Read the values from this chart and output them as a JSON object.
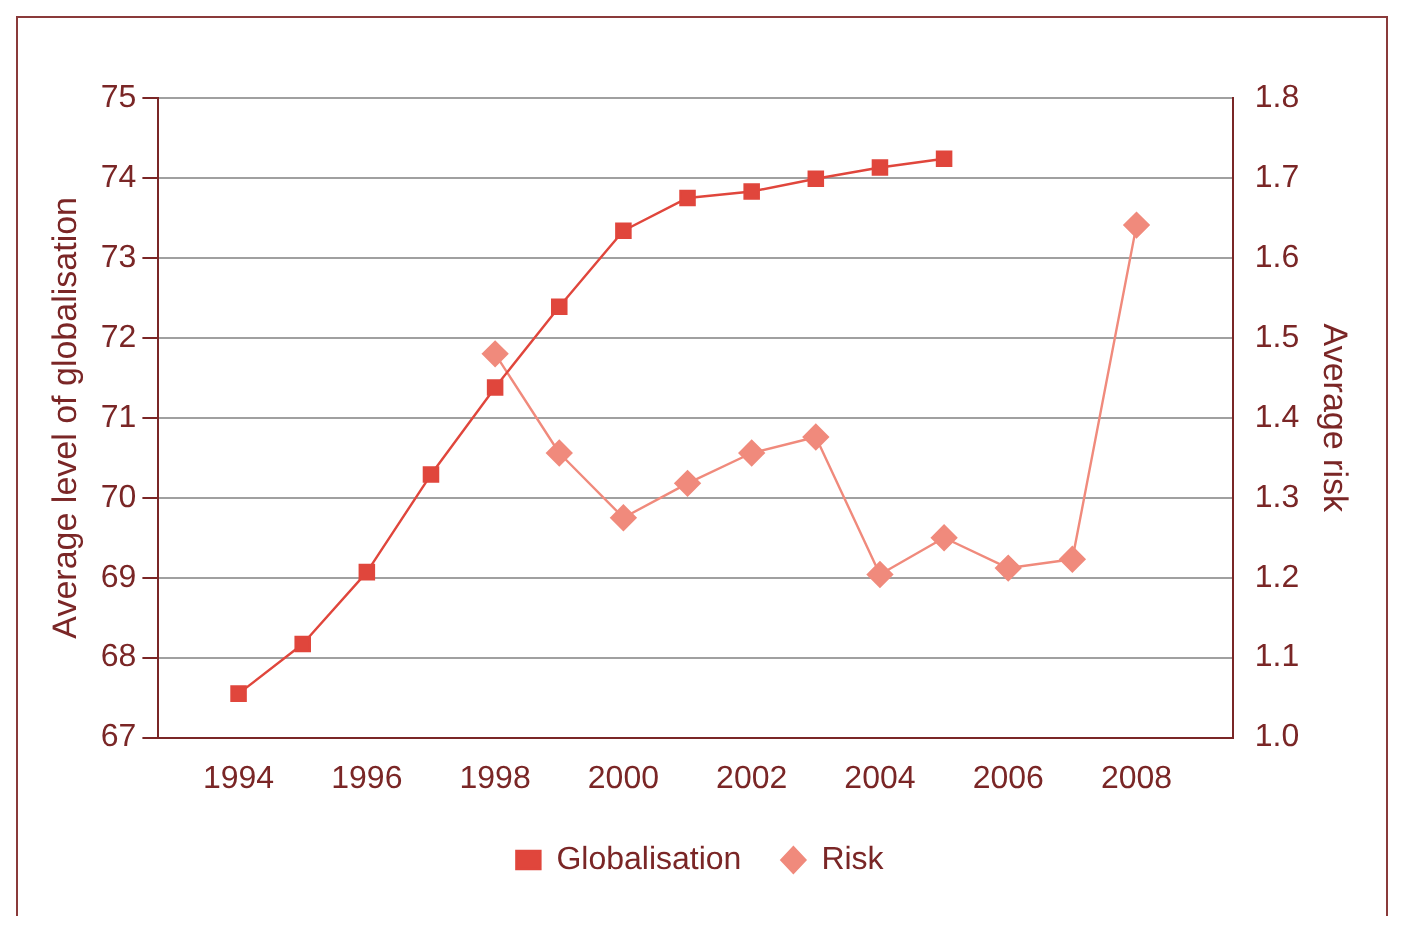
{
  "chart_data": {
    "type": "line",
    "xlabel": null,
    "ylabel": "Average level of globalisation",
    "y2label": "Average risk",
    "x": [
      1994,
      1995,
      1996,
      1997,
      1998,
      1999,
      2000,
      2001,
      2002,
      2003,
      2004,
      2005,
      2006,
      2007,
      2008
    ],
    "series": [
      {
        "name": "Globalisation",
        "color": "#e0463c",
        "marker": "square",
        "values": [
          67.55,
          68.17,
          69.07,
          70.29,
          71.38,
          72.39,
          73.34,
          73.75,
          73.83,
          73.99,
          74.13,
          74.24,
          null,
          null,
          null
        ]
      },
      {
        "name": "Risk",
        "color": "#f08a7c",
        "marker": "diamond",
        "axis": "y2",
        "values": [
          null,
          null,
          null,
          null,
          1.48,
          1.356,
          1.275,
          1.318,
          1.356,
          1.376,
          1.204,
          1.25,
          1.212,
          1.223,
          1.641
        ]
      }
    ],
    "xlim": [
      1992.75,
      2009.5
    ],
    "xticks": [
      1994,
      1996,
      1998,
      2000,
      2002,
      2004,
      2006,
      2008
    ],
    "ylim": [
      67,
      75
    ],
    "yticks": [
      67,
      68,
      69,
      70,
      71,
      72,
      73,
      74,
      75
    ],
    "y2lim": [
      1.0,
      1.8
    ],
    "y2ticks": [
      {
        "value": 1.0,
        "label": "1.0"
      },
      {
        "value": 1.1,
        "label": "1.1"
      },
      {
        "value": 1.2,
        "label": "1.2"
      },
      {
        "value": 1.3,
        "label": "1.3"
      },
      {
        "value": 1.4,
        "label": "1.4"
      },
      {
        "value": 1.5,
        "label": "1.5"
      },
      {
        "value": 1.6,
        "label": "1.6"
      },
      {
        "value": 1.7,
        "label": "1.7"
      },
      {
        "value": 1.8,
        "label": "1.8"
      }
    ],
    "grid": "y",
    "legend": "bottom",
    "line_style": "solid"
  }
}
